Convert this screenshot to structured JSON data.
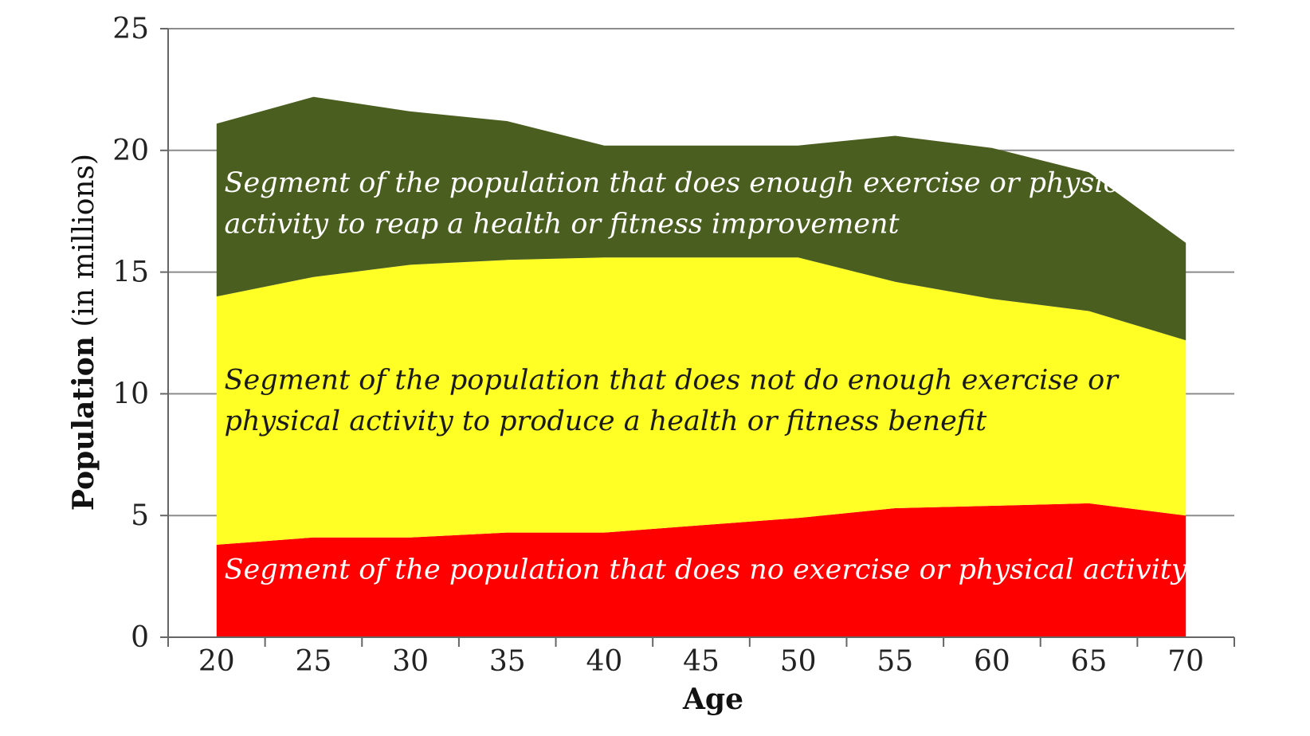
{
  "chart_data": {
    "type": "area",
    "stacked": true,
    "x": [
      20,
      25,
      30,
      35,
      40,
      45,
      50,
      55,
      60,
      65,
      70
    ],
    "x_tick_labels": [
      "20",
      "25",
      "30",
      "35",
      "40",
      "45",
      "50",
      "55",
      "60",
      "65",
      "70"
    ],
    "y_tick_labels": [
      "0",
      "5",
      "10",
      "15",
      "20",
      "25"
    ],
    "xlim": [
      17.5,
      72.5
    ],
    "ylim": [
      0,
      25
    ],
    "grid": true,
    "xlabel": "Age",
    "ylabel_bold": "Population",
    "ylabel_rest": " (in millions)",
    "series": [
      {
        "key": "none",
        "values": [
          3.8,
          4.1,
          4.1,
          4.3,
          4.3,
          4.6,
          4.9,
          5.3,
          5.4,
          5.5,
          5.0
        ],
        "color": "#ff0000",
        "label_color": "#ffffff",
        "label_lines": [
          "Segment of the population that does no exercise or physical activity"
        ]
      },
      {
        "key": "insufficient",
        "values": [
          10.2,
          10.7,
          11.2,
          11.2,
          11.3,
          11.0,
          10.7,
          9.3,
          8.5,
          7.9,
          7.2
        ],
        "color": "#ffff26",
        "label_color": "#1a1a1a",
        "label_lines": [
          "Segment of the population that does not do enough exercise or",
          "physical activity to produce a health or fitness benefit"
        ]
      },
      {
        "key": "enough",
        "values": [
          7.1,
          7.4,
          6.3,
          5.7,
          4.6,
          4.6,
          4.6,
          6.0,
          6.2,
          5.7,
          4.0
        ],
        "color": "#4a5e1f",
        "label_color": "#ffffff",
        "label_lines": [
          "Segment of the population that does enough exercise or physical",
          "activity to reap a health or fitness improvement"
        ]
      }
    ]
  }
}
